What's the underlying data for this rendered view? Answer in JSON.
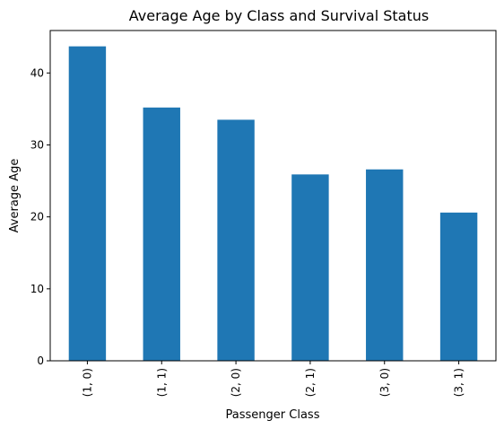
{
  "chart_data": {
    "type": "bar",
    "title": "Average Age by Class and Survival Status",
    "xlabel": "Passenger Class",
    "ylabel": "Average Age",
    "categories": [
      "(1, 0)",
      "(1, 1)",
      "(2, 0)",
      "(2, 1)",
      "(3, 0)",
      "(3, 1)"
    ],
    "values": [
      43.7,
      35.2,
      33.5,
      25.9,
      26.6,
      20.6
    ],
    "ylim": [
      0,
      45.9
    ],
    "yticks": [
      0,
      10,
      20,
      30,
      40
    ],
    "bar_color": "#1f77b4",
    "grid": false,
    "legend": false
  }
}
